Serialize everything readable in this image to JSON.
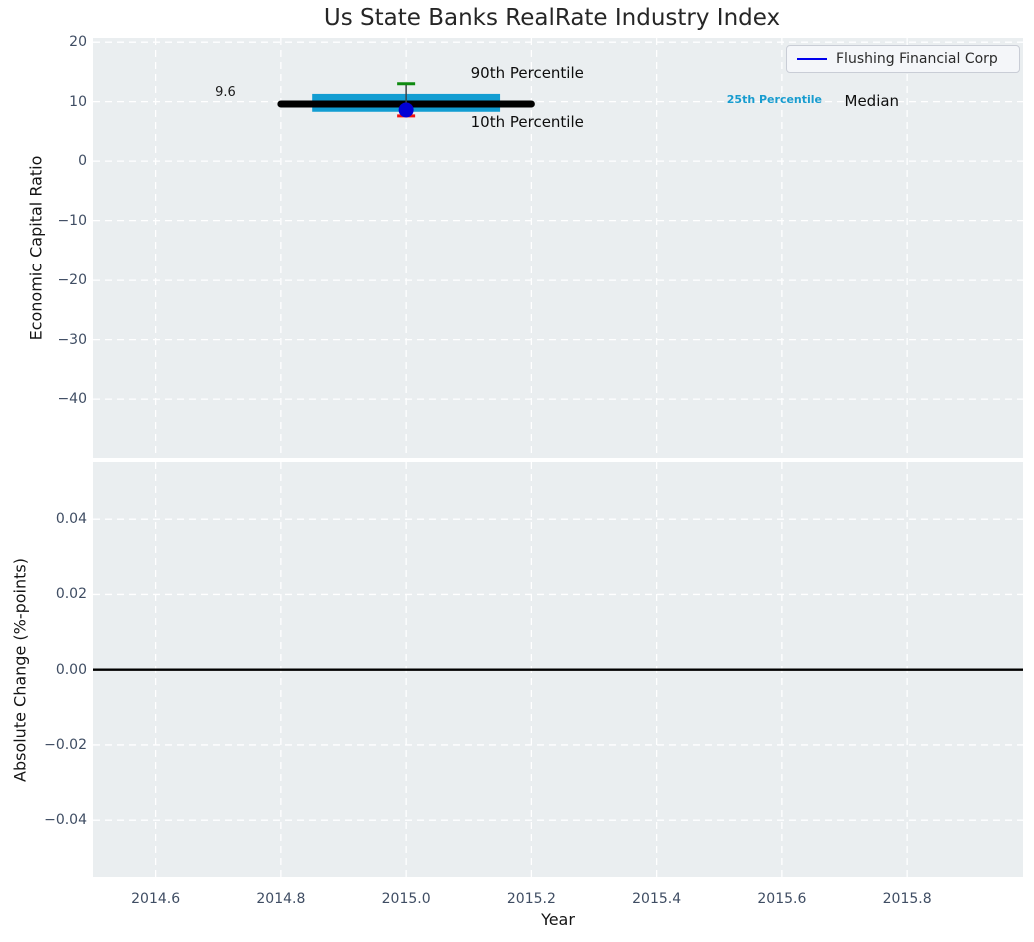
{
  "title": "Us State Banks RealRate Industry Index",
  "legend": {
    "label": "Flushing Financial Corp",
    "position": "upper right",
    "line_color": "#0000ee"
  },
  "style": {
    "figure_bg": "#ffffff",
    "axes_bg": "#eaeef0",
    "grid_color": "#ffffff",
    "tick_color": "#3f4d63",
    "title_color": "#262626",
    "axis_label_color": "#141414"
  },
  "chart_data": [
    {
      "id": "top",
      "type": "line",
      "ylabel": "Economic Capital Ratio",
      "xlim": [
        2014.5,
        2015.985
      ],
      "ylim": [
        -49.9,
        20.7
      ],
      "yticks": [
        20,
        10,
        0,
        -10,
        -20,
        -30,
        -40
      ],
      "ytick_labels": [
        "20",
        "10",
        "0",
        "−10",
        "−20",
        "−30",
        "−40"
      ],
      "grid": true,
      "series": [
        {
          "name": "25th-75th percentile band",
          "type": "band",
          "color": "#129dd2",
          "x": [
            2014.85,
            2015.15
          ],
          "y_low": 8.3,
          "y_high": 11.3
        },
        {
          "name": "Median",
          "type": "line",
          "color": "#000000",
          "linewidth": 7,
          "x": [
            2014.8,
            2015.2
          ],
          "y": [
            9.6,
            9.6
          ]
        },
        {
          "name": "10th-90th percentile whisker",
          "type": "errorbar",
          "x": 2015.0,
          "y_low": 7.6,
          "y_high": 13.0,
          "line_color": "#3c4249",
          "cap_top_color": "#0e8a10",
          "cap_bottom_color": "#ee1111",
          "cap_halfwidth": 9
        },
        {
          "name": "Flushing Financial Corp",
          "type": "scatter",
          "color": "#0000d5",
          "x": [
            2015.0
          ],
          "y": [
            8.6
          ],
          "radius": 7.5
        }
      ],
      "annotations": [
        {
          "id": "median-value-label",
          "text": "9.6",
          "x": 2014.695,
          "y": 11.4,
          "size": 13,
          "color": "#1a1a1a",
          "weight": "normal"
        },
        {
          "id": "label-90th-percentile",
          "text": "90th Percentile",
          "x": 2015.103,
          "y": 14.9,
          "size": 15,
          "color": "#0d0d0d",
          "weight": "normal"
        },
        {
          "id": "label-10th-percentile",
          "text": "10th Percentile",
          "x": 2015.103,
          "y": 6.5,
          "size": 15,
          "color": "#0d0d0d",
          "weight": "normal"
        },
        {
          "id": "label-25th-percentile",
          "text": "25th Percentile",
          "x": 2015.512,
          "y": 10.3,
          "size": 11,
          "color": "#189ccf",
          "weight": "bold"
        },
        {
          "id": "label-median",
          "text": "Median",
          "x": 2015.7,
          "y": 10.1,
          "size": 15,
          "color": "#0d0d0d",
          "weight": "normal"
        }
      ]
    },
    {
      "id": "bottom",
      "type": "line",
      "xlabel": "Year",
      "ylabel": "Absolute Change (%-points)",
      "xlim": [
        2014.5,
        2015.985
      ],
      "ylim": [
        -0.0551,
        0.0552
      ],
      "yticks": [
        0.04,
        0.02,
        0,
        -0.02,
        -0.04
      ],
      "ytick_labels": [
        "0.04",
        "0.02",
        "0.00",
        "−0.02",
        "−0.04"
      ],
      "xticks": [
        2014.6,
        2014.8,
        2015.0,
        2015.2,
        2015.4,
        2015.6,
        2015.8
      ],
      "xtick_labels": [
        "2014.6",
        "2014.8",
        "2015.0",
        "2015.2",
        "2015.4",
        "2015.6",
        "2015.8"
      ],
      "grid": true,
      "series": [
        {
          "name": "zero line",
          "type": "line",
          "color": "#000000",
          "linewidth": 2.4,
          "x": [
            2014.5,
            2015.985
          ],
          "y": [
            0,
            0
          ]
        }
      ]
    }
  ]
}
